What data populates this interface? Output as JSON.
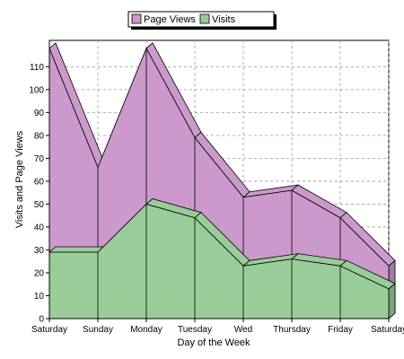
{
  "chart_data": {
    "type": "area",
    "categories": [
      "Saturday",
      "Sunday",
      "Monday",
      "Tuesday",
      "Wed",
      "Thursday",
      "Friday",
      "Saturday"
    ],
    "series": [
      {
        "name": "Page Views",
        "values": [
          118,
          66,
          118,
          79,
          53,
          56,
          44,
          23
        ],
        "color": "#cc99cc"
      },
      {
        "name": "Visits",
        "values": [
          29,
          29,
          50,
          44,
          23,
          26,
          23,
          13
        ],
        "color": "#99cc99"
      }
    ],
    "xlabel": "Day of the Week",
    "ylabel": "Visits and Page Views",
    "ylim": [
      0,
      110
    ],
    "yticks": [
      0,
      10,
      20,
      30,
      40,
      50,
      60,
      70,
      80,
      90,
      100,
      110
    ],
    "grid": true,
    "legend_position": "top"
  }
}
